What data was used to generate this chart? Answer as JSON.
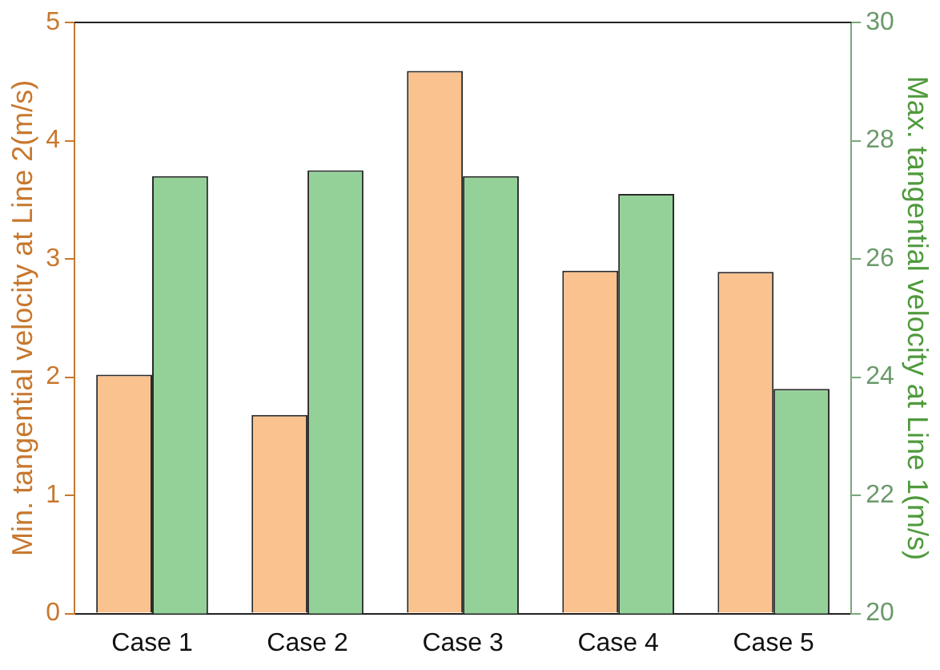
{
  "chart_data": {
    "type": "bar",
    "categories": [
      "Case 1",
      "Case 2",
      "Case 3",
      "Case 4",
      "Case 5"
    ],
    "ylabel": "Min. tangential velocity at Line 2(m/s)",
    "y2label": "Max. tangential velocity at Line 1(m/s)",
    "series": [
      {
        "color": "#f9c28f",
        "values": [
          2.02,
          1.68,
          4.59,
          2.9,
          2.89
        ]
      },
      {
        "color": "#93d198",
        "axis": "y2",
        "values": [
          27.4,
          27.5,
          27.4,
          27.1,
          23.8
        ]
      }
    ],
    "ylim": [
      0,
      5
    ],
    "yticks": [
      0,
      1,
      2,
      3,
      4,
      5
    ],
    "y2lim": [
      20,
      30
    ],
    "y2ticks": [
      20,
      22,
      24,
      26,
      28,
      30
    ],
    "grid": false,
    "legend": false
  }
}
